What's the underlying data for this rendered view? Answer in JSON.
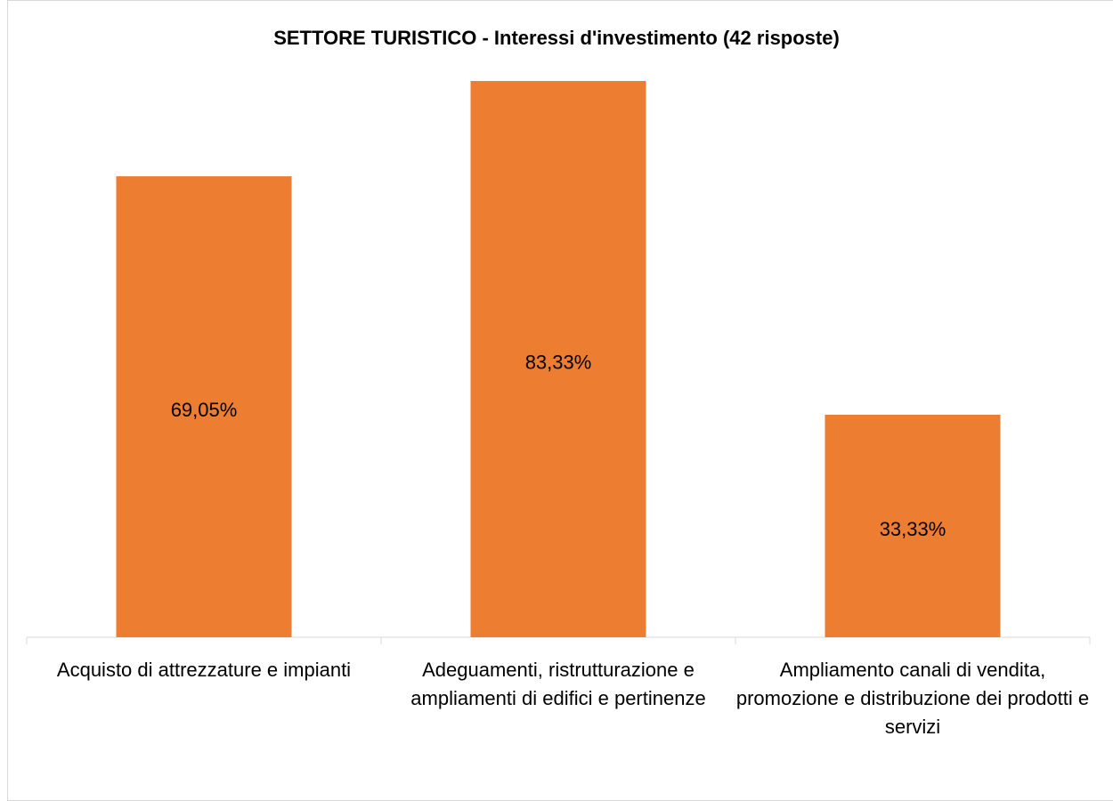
{
  "chart_data": {
    "type": "bar",
    "title": "SETTORE TURISTICO - Interessi d'investimento (42 risposte)",
    "categories": [
      "Acquisto di attrezzature e impianti",
      "Adeguamenti, ristrutturazione e ampliamenti di edifici e pertinenze",
      "Ampliamento canali di vendita, promozione e distribuzione dei prodotti e servizi"
    ],
    "values": [
      69.05,
      83.33,
      33.33
    ],
    "value_labels": [
      "69,05%",
      "83,33%",
      "33,33%"
    ],
    "color": "#ed7d31"
  }
}
